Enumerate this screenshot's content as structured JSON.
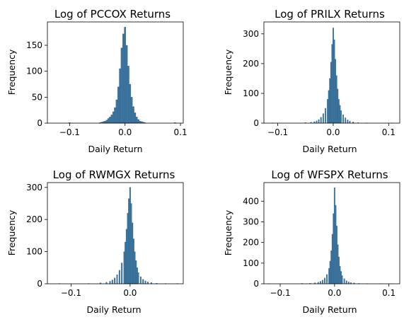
{
  "chart_data": [
    {
      "type": "bar",
      "title": "Log of PCCOX Returns",
      "xlabel": "Daily Return",
      "ylabel": "Frequency",
      "xlim": [
        -0.14,
        0.105
      ],
      "ylim": [
        0,
        195
      ],
      "xticks": [
        -0.1,
        0.0,
        0.1
      ],
      "xtick_labels": [
        "−0.1",
        "0.0",
        "0.1"
      ],
      "yticks": [
        0,
        50,
        100,
        150
      ],
      "ytick_labels": [
        "0",
        "50",
        "100",
        "150"
      ],
      "bin_width": 0.003,
      "bins_center": [
        -0.1,
        -0.045,
        -0.042,
        -0.039,
        -0.036,
        -0.033,
        -0.03,
        -0.027,
        -0.024,
        -0.021,
        -0.018,
        -0.015,
        -0.012,
        -0.009,
        -0.006,
        -0.003,
        0.0,
        0.003,
        0.006,
        0.009,
        0.012,
        0.015,
        0.018,
        0.021,
        0.024,
        0.027,
        0.03,
        0.033,
        0.036,
        0.09
      ],
      "values": [
        1,
        1,
        2,
        3,
        4,
        6,
        9,
        12,
        16,
        22,
        30,
        45,
        70,
        105,
        145,
        172,
        185,
        150,
        110,
        75,
        50,
        32,
        20,
        12,
        7,
        4,
        3,
        2,
        1,
        1
      ],
      "color": "#3b75a0"
    },
    {
      "type": "bar",
      "title": "Log of PRILX Returns",
      "xlabel": "Daily Return",
      "ylabel": "Frequency",
      "xlim": [
        -0.125,
        0.12
      ],
      "ylim": [
        0,
        340
      ],
      "xticks": [
        -0.1,
        0.0,
        0.1
      ],
      "xtick_labels": [
        "−0.1",
        "0.0",
        "0.1"
      ],
      "yticks": [
        0,
        100,
        200,
        300
      ],
      "ytick_labels": [
        "0",
        "100",
        "200",
        "300"
      ],
      "bin_width": 0.002,
      "bins_center": [
        -0.11,
        -0.05,
        -0.04,
        -0.034,
        -0.03,
        -0.026,
        -0.022,
        -0.018,
        -0.014,
        -0.01,
        -0.008,
        -0.006,
        -0.004,
        -0.002,
        0.0,
        0.002,
        0.004,
        0.006,
        0.008,
        0.01,
        0.012,
        0.014,
        0.018,
        0.022,
        0.026,
        0.03,
        0.036,
        0.045,
        0.06,
        0.105
      ],
      "values": [
        1,
        2,
        3,
        5,
        8,
        12,
        20,
        32,
        50,
        80,
        110,
        150,
        205,
        265,
        320,
        280,
        215,
        160,
        115,
        80,
        60,
        42,
        28,
        18,
        11,
        7,
        4,
        2,
        1,
        1
      ],
      "color": "#3b75a0"
    },
    {
      "type": "bar",
      "title": "Log of RWMGX Returns",
      "xlabel": "Daily Return",
      "ylabel": "Frequency",
      "xlim": [
        -0.14,
        0.09
      ],
      "ylim": [
        0,
        315
      ],
      "xticks": [
        -0.1,
        0.0
      ],
      "xtick_labels": [
        "−0.1",
        "0.0"
      ],
      "yticks": [
        0,
        100,
        200,
        300
      ],
      "ytick_labels": [
        "0",
        "100",
        "200",
        "300"
      ],
      "bin_width": 0.002,
      "bins_center": [
        -0.12,
        -0.07,
        -0.05,
        -0.04,
        -0.034,
        -0.03,
        -0.026,
        -0.022,
        -0.018,
        -0.014,
        -0.01,
        -0.008,
        -0.006,
        -0.004,
        -0.002,
        0.0,
        0.002,
        0.004,
        0.006,
        0.008,
        0.01,
        0.012,
        0.014,
        0.018,
        0.022,
        0.026,
        0.03,
        0.036,
        0.045,
        0.06,
        0.08
      ],
      "values": [
        1,
        1,
        3,
        5,
        8,
        12,
        18,
        28,
        42,
        65,
        100,
        130,
        170,
        220,
        265,
        300,
        250,
        190,
        140,
        100,
        72,
        50,
        35,
        22,
        14,
        9,
        6,
        4,
        2,
        1,
        1
      ],
      "color": "#3b75a0"
    },
    {
      "type": "bar",
      "title": "Log of WFSPX Returns",
      "xlabel": "Daily Return",
      "ylabel": "Frequency",
      "xlim": [
        -0.13,
        0.12
      ],
      "ylim": [
        0,
        490
      ],
      "xticks": [
        -0.1,
        0.0,
        0.1
      ],
      "xtick_labels": [
        "−0.1",
        "0.0",
        "0.1"
      ],
      "yticks": [
        0,
        100,
        200,
        300,
        400
      ],
      "ytick_labels": [
        "0",
        "100",
        "200",
        "300",
        "400"
      ],
      "bin_width": 0.002,
      "bins_center": [
        -0.12,
        -0.06,
        -0.045,
        -0.036,
        -0.03,
        -0.026,
        -0.022,
        -0.018,
        -0.014,
        -0.01,
        -0.008,
        -0.006,
        -0.004,
        -0.002,
        0.0,
        0.002,
        0.004,
        0.006,
        0.008,
        0.01,
        0.012,
        0.014,
        0.018,
        0.022,
        0.026,
        0.03,
        0.036,
        0.045,
        0.06,
        0.085,
        0.105
      ],
      "values": [
        1,
        2,
        3,
        5,
        8,
        12,
        18,
        28,
        45,
        75,
        110,
        160,
        240,
        340,
        465,
        380,
        280,
        190,
        130,
        85,
        60,
        40,
        25,
        15,
        9,
        6,
        4,
        2,
        1,
        1,
        1
      ],
      "color": "#3b75a0"
    }
  ]
}
